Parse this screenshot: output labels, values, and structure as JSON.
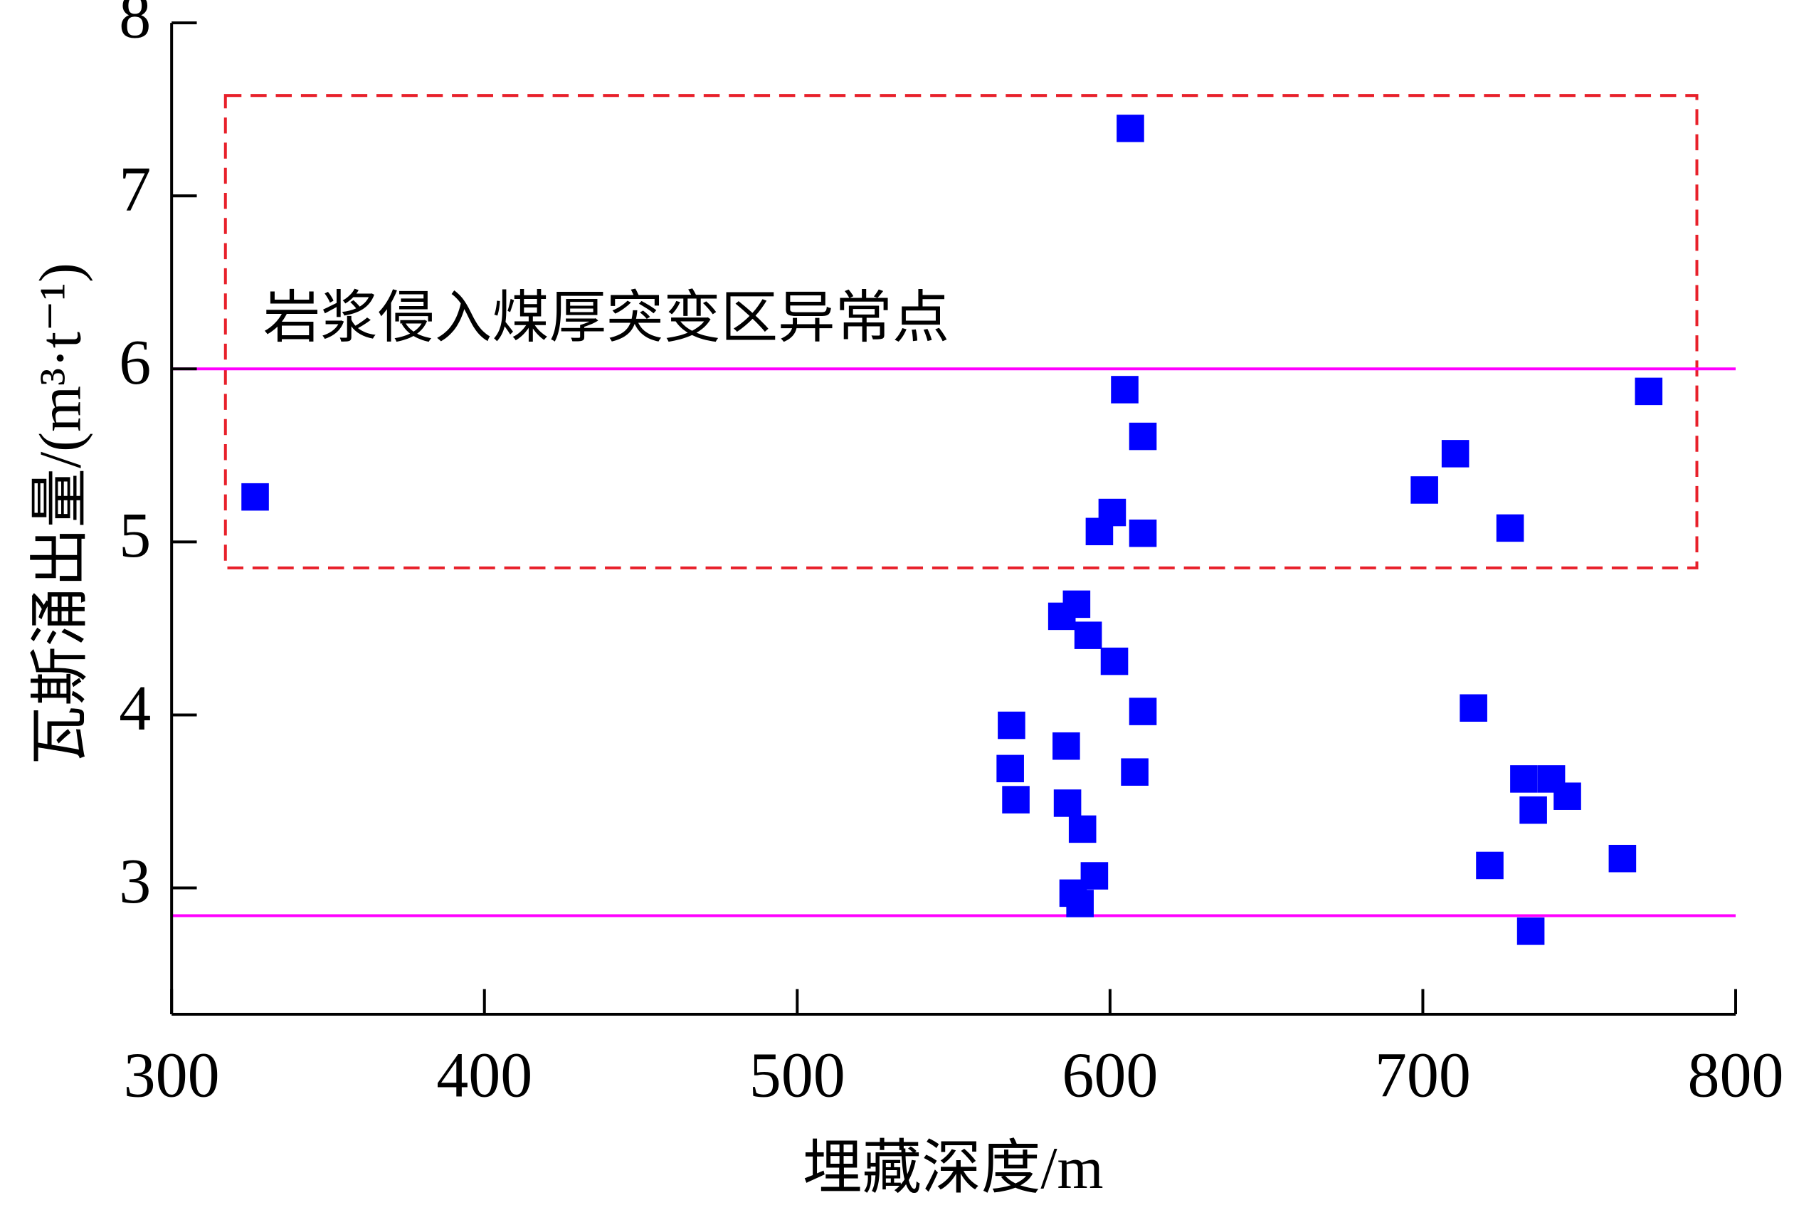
{
  "chart_data": {
    "type": "scatter",
    "x_label": "埋藏深度/m",
    "y_label": "瓦斯涌出量/(m³·t⁻¹)",
    "xlim": [
      300,
      800
    ],
    "ylim": [
      2.27,
      8
    ],
    "xticks": [
      300,
      400,
      500,
      600,
      700,
      800
    ],
    "yticks": [
      3,
      4,
      5,
      6,
      7,
      8
    ],
    "grid": false,
    "series": [
      {
        "color": "#0000ff",
        "marker": "square",
        "x": [
          326.7,
          606.5,
          604.7,
          610.5,
          600.7,
          596.6,
          610.5,
          700.5,
          710.4,
          727.9,
          772.2,
          584.6,
          589.3,
          593.0,
          601.4,
          610.5,
          568.5,
          568.1,
          569.9,
          586.0,
          586.4,
          591.2,
          607.9,
          595.0,
          588.2,
          590.4,
          716.2,
          732.3,
          741.1,
          746.2,
          735.3,
          721.4,
          763.8,
          734.5
        ],
        "values": [
          5.26,
          7.39,
          5.88,
          5.61,
          5.17,
          5.06,
          5.05,
          5.3,
          5.51,
          5.08,
          5.87,
          4.57,
          4.64,
          4.46,
          4.31,
          4.02,
          3.94,
          3.69,
          3.51,
          3.82,
          3.49,
          3.34,
          3.67,
          3.07,
          2.97,
          2.91,
          4.04,
          3.63,
          3.63,
          3.53,
          3.45,
          3.13,
          3.17,
          2.75
        ]
      }
    ],
    "hlines": [
      {
        "value": 6,
        "color": "#ff00ff"
      },
      {
        "value": 2.84,
        "color": "#ff00ff"
      }
    ],
    "region": {
      "label": "岩浆侵入煤厚突变区异常点",
      "x": [
        317.2,
        787.6
      ],
      "y": [
        4.85,
        7.58
      ],
      "color": "#e8202a"
    }
  }
}
